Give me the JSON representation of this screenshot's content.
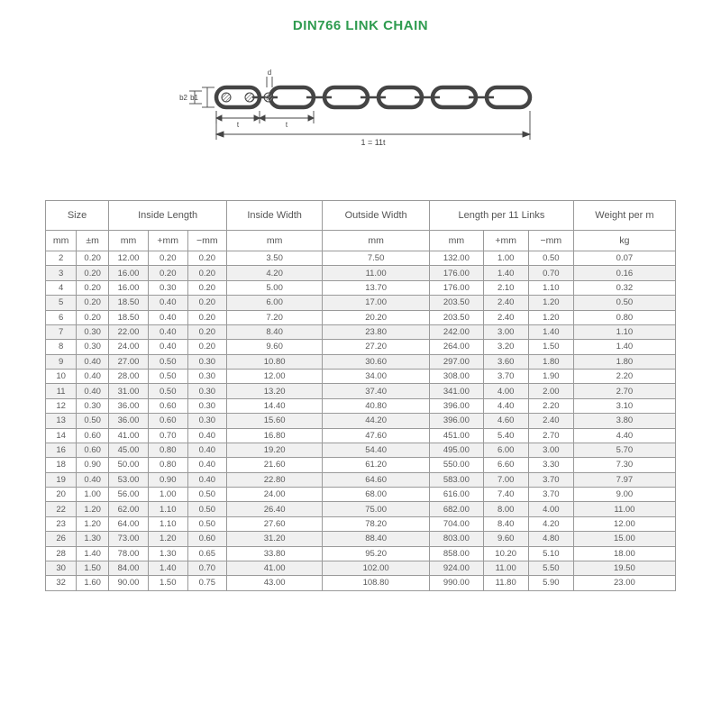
{
  "title": "DIN766 LINK CHAIN",
  "diagram": {
    "stroke": "#444444",
    "fill": "#ffffff",
    "hatch": "#888888",
    "label_b1": "b1",
    "label_b2": "b2",
    "label_d": "d",
    "label_t": "t",
    "label_span": "1 = 11t"
  },
  "table": {
    "groupHeaders": [
      {
        "label": "Size",
        "span": 2
      },
      {
        "label": "Inside Length",
        "span": 3
      },
      {
        "label": "Inside Width",
        "span": 1
      },
      {
        "label": "Outside Width",
        "span": 1
      },
      {
        "label": "Length per 11 Links",
        "span": 3
      },
      {
        "label": "Weight per m",
        "span": 1
      }
    ],
    "unitHeaders": [
      "mm",
      "±m",
      "mm",
      "+mm",
      "−mm",
      "mm",
      "mm",
      "mm",
      "+mm",
      "−mm",
      "kg"
    ],
    "rows": [
      [
        "2",
        "0.20",
        "12.00",
        "0.20",
        "0.20",
        "3.50",
        "7.50",
        "132.00",
        "1.00",
        "0.50",
        "0.07"
      ],
      [
        "3",
        "0.20",
        "16.00",
        "0.20",
        "0.20",
        "4.20",
        "11.00",
        "176.00",
        "1.40",
        "0.70",
        "0.16"
      ],
      [
        "4",
        "0.20",
        "16.00",
        "0.30",
        "0.20",
        "5.00",
        "13.70",
        "176.00",
        "2.10",
        "1.10",
        "0.32"
      ],
      [
        "5",
        "0.20",
        "18.50",
        "0.40",
        "0.20",
        "6.00",
        "17.00",
        "203.50",
        "2.40",
        "1.20",
        "0.50"
      ],
      [
        "6",
        "0.20",
        "18.50",
        "0.40",
        "0.20",
        "7.20",
        "20.20",
        "203.50",
        "2.40",
        "1.20",
        "0.80"
      ],
      [
        "7",
        "0.30",
        "22.00",
        "0.40",
        "0.20",
        "8.40",
        "23.80",
        "242.00",
        "3.00",
        "1.40",
        "1.10"
      ],
      [
        "8",
        "0.30",
        "24.00",
        "0.40",
        "0.20",
        "9.60",
        "27.20",
        "264.00",
        "3.20",
        "1.50",
        "1.40"
      ],
      [
        "9",
        "0.40",
        "27.00",
        "0.50",
        "0.30",
        "10.80",
        "30.60",
        "297.00",
        "3.60",
        "1.80",
        "1.80"
      ],
      [
        "10",
        "0.40",
        "28.00",
        "0.50",
        "0.30",
        "12.00",
        "34.00",
        "308.00",
        "3.70",
        "1.90",
        "2.20"
      ],
      [
        "11",
        "0.40",
        "31.00",
        "0.50",
        "0.30",
        "13.20",
        "37.40",
        "341.00",
        "4.00",
        "2.00",
        "2.70"
      ],
      [
        "12",
        "0.30",
        "36.00",
        "0.60",
        "0.30",
        "14.40",
        "40.80",
        "396.00",
        "4.40",
        "2.20",
        "3.10"
      ],
      [
        "13",
        "0.50",
        "36.00",
        "0.60",
        "0.30",
        "15.60",
        "44.20",
        "396.00",
        "4.60",
        "2.40",
        "3.80"
      ],
      [
        "14",
        "0.60",
        "41.00",
        "0.70",
        "0.40",
        "16.80",
        "47.60",
        "451.00",
        "5.40",
        "2.70",
        "4.40"
      ],
      [
        "16",
        "0.60",
        "45.00",
        "0.80",
        "0.40",
        "19.20",
        "54.40",
        "495.00",
        "6.00",
        "3.00",
        "5.70"
      ],
      [
        "18",
        "0.90",
        "50.00",
        "0.80",
        "0.40",
        "21.60",
        "61.20",
        "550.00",
        "6.60",
        "3.30",
        "7.30"
      ],
      [
        "19",
        "0.40",
        "53.00",
        "0.90",
        "0.40",
        "22.80",
        "64.60",
        "583.00",
        "7.00",
        "3.70",
        "7.97"
      ],
      [
        "20",
        "1.00",
        "56.00",
        "1.00",
        "0.50",
        "24.00",
        "68.00",
        "616.00",
        "7.40",
        "3.70",
        "9.00"
      ],
      [
        "22",
        "1.20",
        "62.00",
        "1.10",
        "0.50",
        "26.40",
        "75.00",
        "682.00",
        "8.00",
        "4.00",
        "11.00"
      ],
      [
        "23",
        "1.20",
        "64.00",
        "1.10",
        "0.50",
        "27.60",
        "78.20",
        "704.00",
        "8.40",
        "4.20",
        "12.00"
      ],
      [
        "26",
        "1.30",
        "73.00",
        "1.20",
        "0.60",
        "31.20",
        "88.40",
        "803.00",
        "9.60",
        "4.80",
        "15.00"
      ],
      [
        "28",
        "1.40",
        "78.00",
        "1.30",
        "0.65",
        "33.80",
        "95.20",
        "858.00",
        "10.20",
        "5.10",
        "18.00"
      ],
      [
        "30",
        "1.50",
        "84.00",
        "1.40",
        "0.70",
        "41.00",
        "102.00",
        "924.00",
        "11.00",
        "5.50",
        "19.50"
      ],
      [
        "32",
        "1.60",
        "90.00",
        "1.50",
        "0.75",
        "43.00",
        "108.80",
        "990.00",
        "11.80",
        "5.90",
        "23.00"
      ]
    ]
  }
}
